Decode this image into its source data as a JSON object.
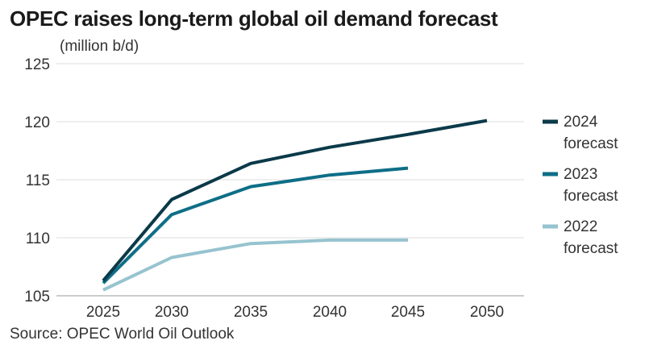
{
  "title": "OPEC raises long-term global oil demand forecast",
  "unit_label": "(million b/d)",
  "source": "Source: OPEC World Oil Outlook",
  "chart_data": {
    "type": "line",
    "title": "OPEC raises long-term global oil demand forecast",
    "ylabel": "(million b/d)",
    "xlabel": "",
    "x": [
      2025,
      2030,
      2035,
      2040,
      2045,
      2050
    ],
    "ylim": [
      105,
      125
    ],
    "yticks": [
      105,
      110,
      115,
      120,
      125
    ],
    "grid": true,
    "legend_position": "right",
    "series": [
      {
        "name": "2024 forecast",
        "legend_lines": [
          "2024",
          "forecast"
        ],
        "color": "#0b3a49",
        "values": [
          106.3,
          113.3,
          116.4,
          117.8,
          118.9,
          120.1
        ]
      },
      {
        "name": "2023 forecast",
        "legend_lines": [
          "2023",
          "forecast"
        ],
        "color": "#0e6e87",
        "values": [
          106.1,
          112.0,
          114.4,
          115.4,
          116.0,
          null
        ]
      },
      {
        "name": "2022 forecast",
        "legend_lines": [
          "2022",
          "forecast"
        ],
        "color": "#96c3cf",
        "values": [
          105.5,
          108.3,
          109.5,
          109.8,
          109.8,
          null
        ]
      }
    ]
  }
}
